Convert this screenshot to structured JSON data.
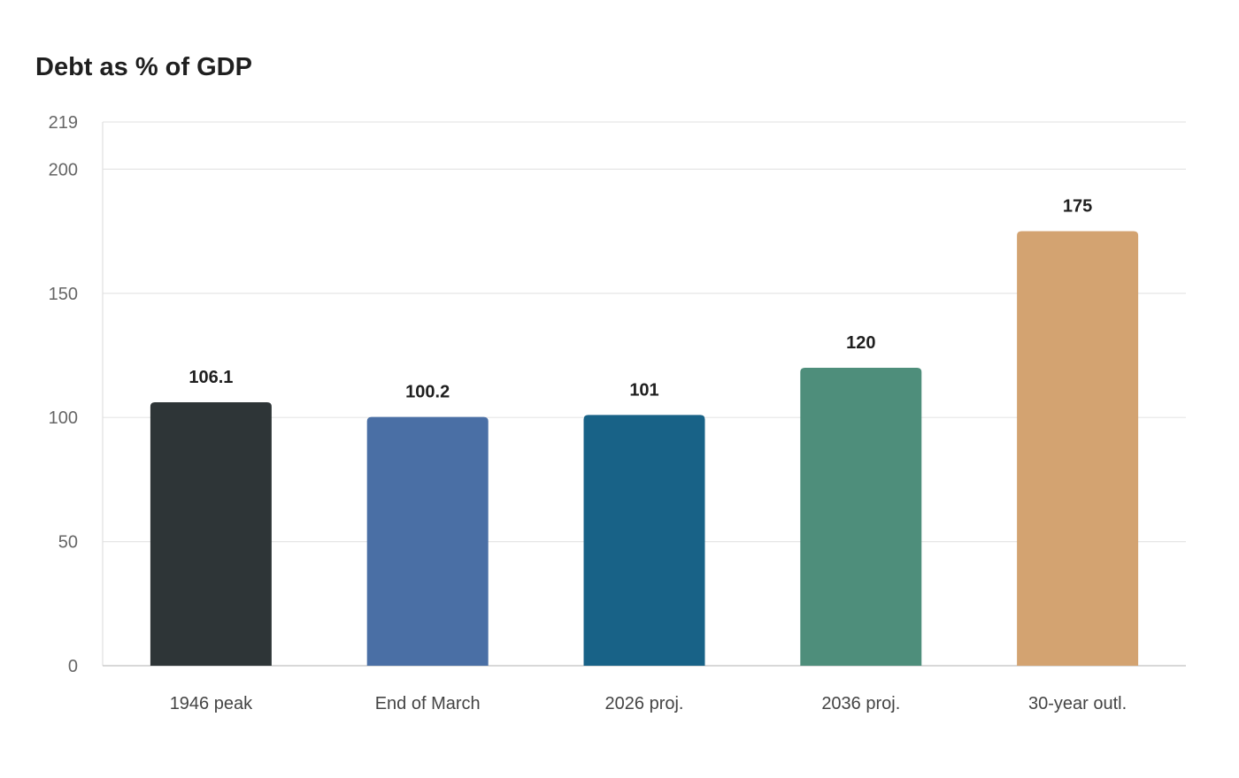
{
  "chart_data": {
    "type": "bar",
    "title": "Debt as % of GDP",
    "xlabel": "",
    "ylabel": "",
    "categories": [
      "1946 peak",
      "End of March",
      "2026 proj.",
      "2036 proj.",
      "30-year outl."
    ],
    "values": [
      106.1,
      100.2,
      101,
      120,
      175
    ],
    "value_labels": [
      "106.1",
      "100.2",
      "101",
      "120",
      "175"
    ],
    "colors": [
      "#2e3537",
      "#4a6fa5",
      "#186287",
      "#4e8e7b",
      "#d3a371"
    ],
    "yticks": [
      0,
      50,
      100,
      150,
      200,
      219
    ],
    "ylim": [
      0,
      219
    ],
    "grid": true,
    "legend": "none"
  }
}
